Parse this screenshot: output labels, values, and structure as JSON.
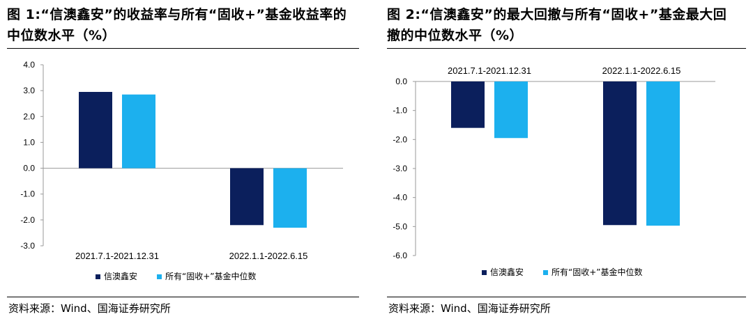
{
  "colors": {
    "series1": "#0b1f5c",
    "series2": "#1cb0ee"
  },
  "left": {
    "title": "图 1:“信澳鑫安”的收益率与所有“固收+”基金收益率的中位数水平（%）",
    "source": "资料来源：Wind、国海证券研究所"
  },
  "right": {
    "title": "图 2:“信澳鑫安”的最大回撤与所有“固收+”基金最大回撤的中位数水平（%）",
    "source": "资料来源：Wind、国海证券研究所"
  },
  "chart_data": [
    {
      "type": "bar",
      "title": "图 1:“信澳鑫安”的收益率与所有“固收+”基金收益率的中位数水平（%）",
      "categories": [
        "2021.7.1-2021.12.31",
        "2022.1.1-2022.6.15"
      ],
      "series": [
        {
          "name": "信澳鑫安",
          "values": [
            2.95,
            -2.2
          ]
        },
        {
          "name": "所有“固收+”基金中位数",
          "values": [
            2.85,
            -2.3
          ]
        }
      ],
      "ylim": [
        -3.0,
        4.0
      ],
      "yticks": [
        "4.0",
        "3.0",
        "2.0",
        "1.0",
        "0.0",
        "-1.0",
        "-2.0",
        "-3.0"
      ],
      "category_label_position": "bottom",
      "legend": "bottom",
      "grid": false
    },
    {
      "type": "bar",
      "title": "图 2:“信澳鑫安”的最大回撤与所有“固收+”基金最大回撤的中位数水平（%）",
      "categories": [
        "2021.7.1-2021.12.31",
        "2022.1.1-2022.6.15"
      ],
      "series": [
        {
          "name": "信澳鑫安",
          "values": [
            -1.6,
            -4.95
          ]
        },
        {
          "name": "所有“固收+”基金中位数",
          "values": [
            -1.95,
            -4.97
          ]
        }
      ],
      "ylim": [
        -6.0,
        0.0
      ],
      "yticks": [
        "0.0",
        "-1.0",
        "-2.0",
        "-3.0",
        "-4.0",
        "-5.0",
        "-6.0"
      ],
      "category_label_position": "top",
      "legend": "bottom",
      "grid": false
    }
  ]
}
